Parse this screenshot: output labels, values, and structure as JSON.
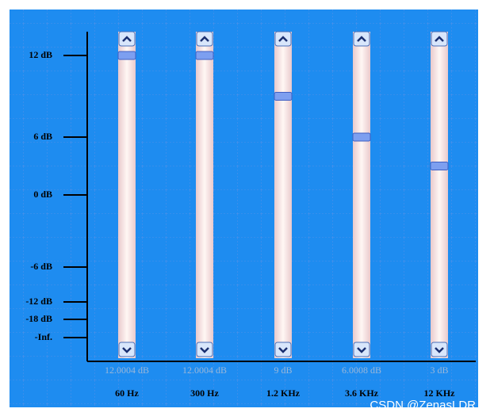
{
  "scale": [
    {
      "label": "12 dB",
      "value": 12
    },
    {
      "label": "6 dB",
      "value": 6
    },
    {
      "label": "0 dB",
      "value": 0
    },
    {
      "label": "-6 dB",
      "value": -6
    },
    {
      "label": "-12 dB",
      "value": -12
    },
    {
      "label": "-18 dB",
      "value": -18
    },
    {
      "label": "-Inf."
    }
  ],
  "sliders": [
    {
      "value": 12.0004,
      "value_label": "12.0004 dB",
      "band": "60 Hz"
    },
    {
      "value": 12.0004,
      "value_label": "12.0004 dB",
      "band": "300 Hz"
    },
    {
      "value": 9,
      "value_label": "9 dB",
      "band": "1.2 KHz"
    },
    {
      "value": 6.0008,
      "value_label": "6.0008 dB",
      "band": "3.6 KHz"
    },
    {
      "value": 3,
      "value_label": "3 dB",
      "band": "12 KHz"
    }
  ],
  "watermark": "CSDN @ZenasLDR"
}
